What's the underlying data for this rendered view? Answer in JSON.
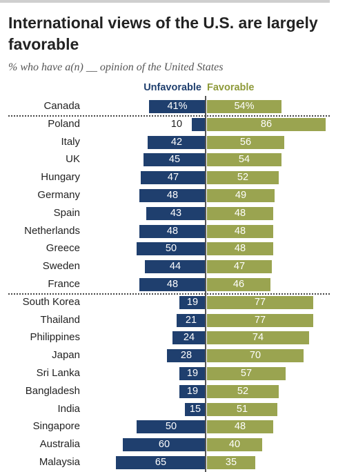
{
  "title": "International views of the U.S. are largely favorable",
  "subtitle": "% who have a(n) __ opinion of the United States",
  "legend": {
    "unfavorable": "Unfavorable",
    "favorable": "Favorable"
  },
  "colors": {
    "unfavorable": "#1f3f6e",
    "favorable": "#9aa450"
  },
  "chart_data": {
    "type": "bar",
    "orientation": "horizontal-diverging",
    "title": "International views of the U.S. are largely favorable",
    "subtitle": "% who have a(n) __ opinion of the United States",
    "categories": [
      "Canada",
      "Poland",
      "Italy",
      "UK",
      "Hungary",
      "Germany",
      "Spain",
      "Netherlands",
      "Greece",
      "Sweden",
      "France",
      "South Korea",
      "Thailand",
      "Philippines",
      "Japan",
      "Sri Lanka",
      "Bangladesh",
      "India",
      "Singapore",
      "Australia",
      "Malaysia"
    ],
    "series": [
      {
        "name": "Unfavorable",
        "values": [
          41,
          10,
          42,
          45,
          47,
          48,
          43,
          48,
          50,
          44,
          48,
          19,
          21,
          24,
          28,
          19,
          19,
          15,
          50,
          60,
          65
        ],
        "labels": [
          "41%",
          "10",
          "42",
          "45",
          "47",
          "48",
          "43",
          "48",
          "50",
          "44",
          "48",
          "19",
          "21",
          "24",
          "28",
          "19",
          "19",
          "15",
          "50",
          "60",
          "65"
        ]
      },
      {
        "name": "Favorable",
        "values": [
          54,
          86,
          56,
          54,
          52,
          49,
          48,
          48,
          48,
          47,
          46,
          77,
          77,
          74,
          70,
          57,
          52,
          51,
          48,
          40,
          35
        ],
        "labels": [
          "54%",
          "86",
          "56",
          "54",
          "52",
          "49",
          "48",
          "48",
          "48",
          "47",
          "46",
          "77",
          "77",
          "74",
          "70",
          "57",
          "52",
          "51",
          "48",
          "40",
          "35"
        ]
      }
    ],
    "groups": [
      [
        "Canada"
      ],
      [
        "Poland",
        "Italy",
        "UK",
        "Hungary",
        "Germany",
        "Spain",
        "Netherlands",
        "Greece",
        "Sweden",
        "France"
      ],
      [
        "South Korea",
        "Thailand",
        "Philippines",
        "Japan",
        "Sri Lanka",
        "Bangladesh",
        "India",
        "Singapore",
        "Australia",
        "Malaysia"
      ]
    ],
    "xlim": [
      -100,
      100
    ],
    "grid": false,
    "legend_position": "top"
  }
}
